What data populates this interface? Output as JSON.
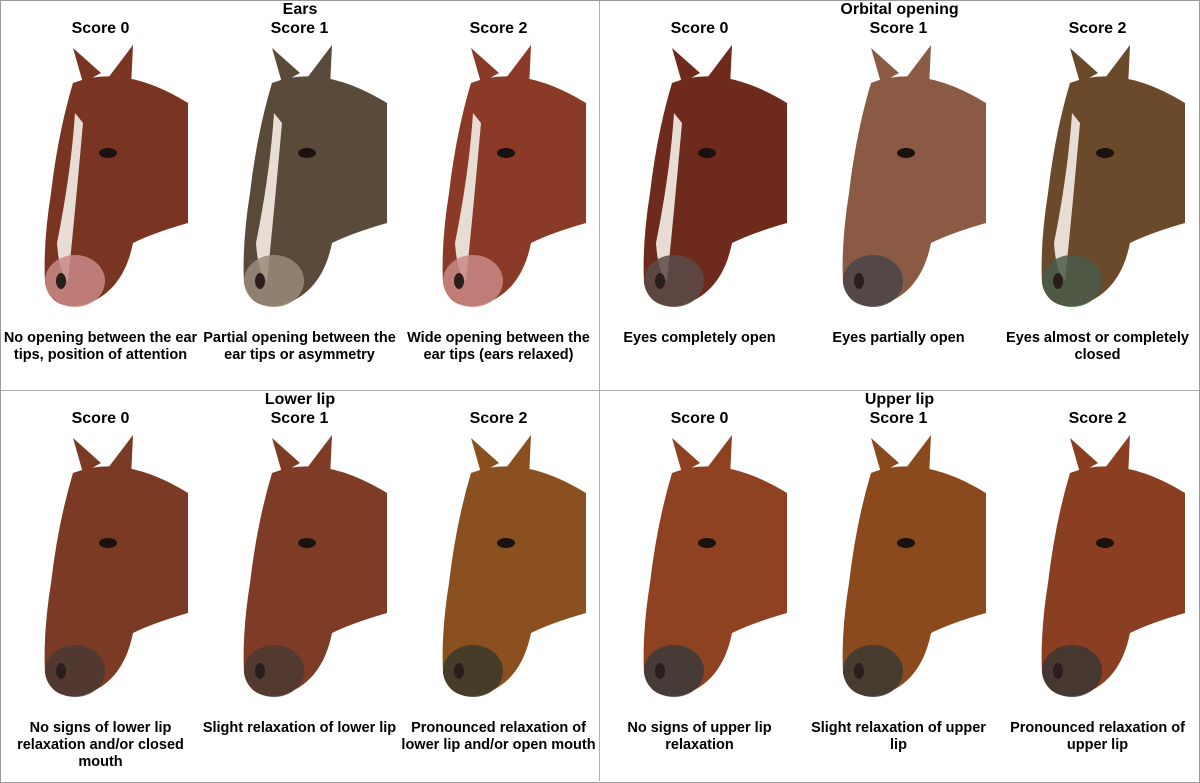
{
  "panels": [
    {
      "title": "Ears",
      "items": [
        {
          "score": "Score 0",
          "caption": "No opening between the ear tips, position of attention",
          "coat": "#7a3422",
          "blaze": true,
          "muzzle": "#c98a86"
        },
        {
          "score": "Score 1",
          "caption": "Partial opening between the ear tips or asymmetry",
          "coat": "#5a4a3a",
          "blaze": true,
          "muzzle": "#9a8a7a"
        },
        {
          "score": "Score 2",
          "caption": "Wide opening between the ear tips (ears relaxed)",
          "coat": "#8a3a26",
          "blaze": true,
          "muzzle": "#c98a86"
        }
      ]
    },
    {
      "title": "Orbital opening",
      "items": [
        {
          "score": "Score 0",
          "caption": "Eyes completely open",
          "coat": "#6e2a1c",
          "blaze": true,
          "muzzle": "#5a4a48"
        },
        {
          "score": "Score 1",
          "caption": "Eyes partially open",
          "coat": "#8a5a44",
          "blaze": false,
          "muzzle": "#4a4448"
        },
        {
          "score": "Score 2",
          "caption": "Eyes almost or completely closed",
          "coat": "#6a4a2a",
          "blaze": true,
          "muzzle": "#4a5a4a"
        }
      ]
    },
    {
      "title": "Lower lip",
      "items": [
        {
          "score": "Score 0",
          "caption": "No signs of lower lip relaxation and/or closed mouth",
          "coat": "#7a3a24",
          "blaze": false,
          "muzzle": "#4a3a34"
        },
        {
          "score": "Score 1",
          "caption": "Slight relaxation of lower lip",
          "coat": "#7e3c26",
          "blaze": false,
          "muzzle": "#4a3a34"
        },
        {
          "score": "Score 2",
          "caption": "Pronounced relaxation of lower lip and/or open mouth",
          "coat": "#8a5020",
          "blaze": false,
          "muzzle": "#3a3a2a"
        }
      ]
    },
    {
      "title": "Upper lip",
      "items": [
        {
          "score": "Score 0",
          "caption": "No signs of upper lip relaxation",
          "coat": "#8e4222",
          "blaze": false,
          "muzzle": "#3a3a3a"
        },
        {
          "score": "Score 1",
          "caption": "Slight relaxation of upper lip",
          "coat": "#8a4a1e",
          "blaze": false,
          "muzzle": "#3a3a34"
        },
        {
          "score": "Score 2",
          "caption": "Pronounced relaxation of upper lip",
          "coat": "#8a3e22",
          "blaze": false,
          "muzzle": "#3a3634"
        }
      ]
    }
  ]
}
